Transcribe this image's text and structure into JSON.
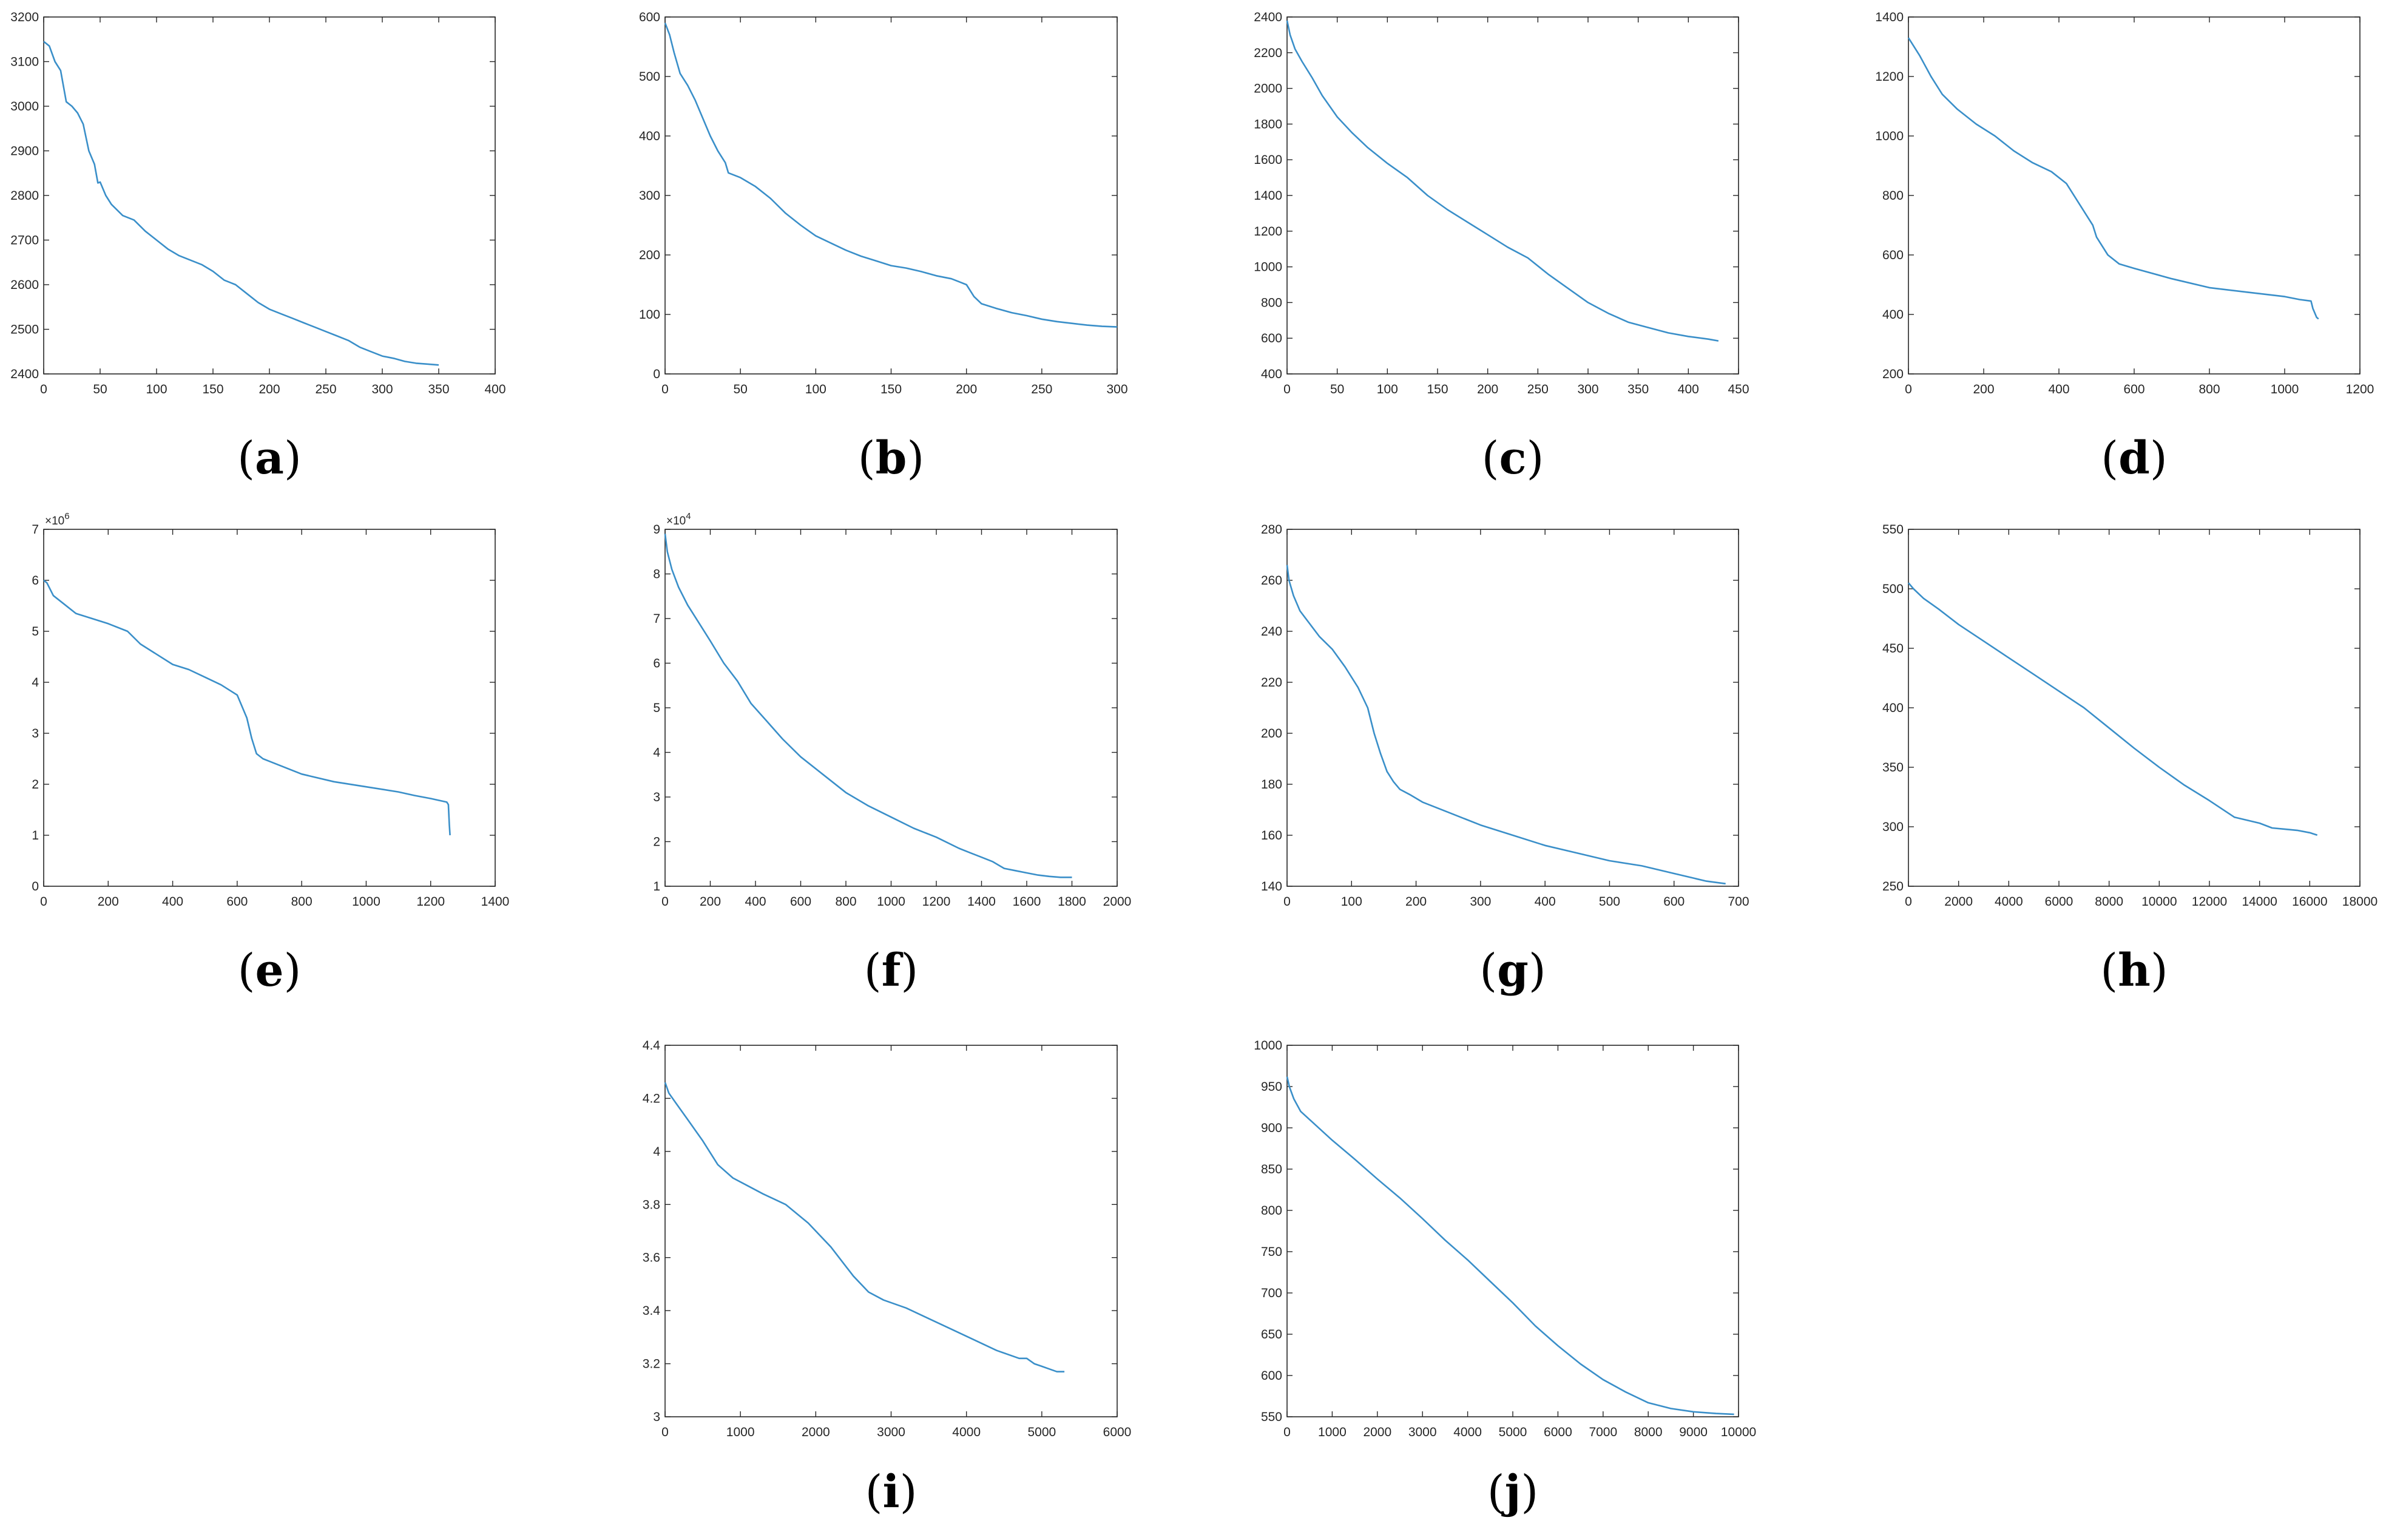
{
  "line_color": "#3a8fc9",
  "chart_data": [
    {
      "type": "line",
      "caption": "(a)",
      "xlim": [
        0,
        400
      ],
      "ylim": [
        2400,
        3200
      ],
      "xticks": [
        0,
        50,
        100,
        150,
        200,
        250,
        300,
        350,
        400
      ],
      "yticks": [
        2400,
        2500,
        2600,
        2700,
        2800,
        2900,
        3000,
        3100,
        3200
      ],
      "series": [
        {
          "x": [
            0,
            5,
            10,
            15,
            20,
            25,
            30,
            35,
            40,
            45,
            48,
            50,
            55,
            60,
            70,
            80,
            90,
            100,
            110,
            120,
            130,
            140,
            150,
            160,
            170,
            180,
            190,
            200,
            210,
            220,
            230,
            240,
            250,
            260,
            270,
            280,
            290,
            300,
            310,
            320,
            330,
            340,
            350
          ],
          "y": [
            3145,
            3135,
            3100,
            3080,
            3010,
            3000,
            2985,
            2960,
            2900,
            2870,
            2828,
            2830,
            2800,
            2780,
            2755,
            2745,
            2720,
            2700,
            2680,
            2665,
            2655,
            2645,
            2630,
            2610,
            2600,
            2580,
            2560,
            2545,
            2535,
            2525,
            2515,
            2505,
            2495,
            2485,
            2475,
            2460,
            2450,
            2440,
            2435,
            2428,
            2424,
            2422,
            2420
          ]
        }
      ]
    },
    {
      "type": "line",
      "caption": "(b)",
      "xlim": [
        0,
        300
      ],
      "ylim": [
        0,
        600
      ],
      "xticks": [
        0,
        50,
        100,
        150,
        200,
        250,
        300
      ],
      "yticks": [
        0,
        100,
        200,
        300,
        400,
        500,
        600
      ],
      "series": [
        {
          "x": [
            0,
            3,
            6,
            10,
            15,
            20,
            25,
            30,
            35,
            40,
            42,
            50,
            60,
            70,
            80,
            90,
            100,
            110,
            120,
            130,
            140,
            150,
            160,
            170,
            180,
            190,
            195,
            200,
            205,
            210,
            220,
            230,
            240,
            250,
            260,
            270,
            280,
            290,
            300
          ],
          "y": [
            590,
            570,
            540,
            505,
            485,
            460,
            430,
            400,
            375,
            355,
            338,
            330,
            315,
            295,
            270,
            250,
            232,
            220,
            208,
            198,
            190,
            182,
            178,
            172,
            165,
            160,
            155,
            150,
            130,
            118,
            110,
            103,
            98,
            92,
            88,
            85,
            82,
            80,
            79
          ]
        }
      ]
    },
    {
      "type": "line",
      "caption": "(c)",
      "xlim": [
        0,
        450
      ],
      "ylim": [
        400,
        2400
      ],
      "xticks": [
        0,
        50,
        100,
        150,
        200,
        250,
        300,
        350,
        400,
        450
      ],
      "yticks": [
        400,
        600,
        800,
        1000,
        1200,
        1400,
        1600,
        1800,
        2000,
        2200,
        2400
      ],
      "series": [
        {
          "x": [
            0,
            3,
            8,
            15,
            25,
            35,
            50,
            65,
            80,
            100,
            120,
            140,
            160,
            180,
            200,
            220,
            240,
            260,
            280,
            300,
            320,
            340,
            360,
            380,
            400,
            420,
            430
          ],
          "y": [
            2380,
            2300,
            2220,
            2150,
            2060,
            1960,
            1840,
            1750,
            1670,
            1580,
            1500,
            1400,
            1320,
            1250,
            1180,
            1110,
            1050,
            960,
            880,
            800,
            740,
            690,
            660,
            630,
            610,
            595,
            585
          ]
        }
      ]
    },
    {
      "type": "line",
      "caption": "(d)",
      "xlim": [
        0,
        1200
      ],
      "ylim": [
        200,
        1400
      ],
      "xticks": [
        0,
        200,
        400,
        600,
        800,
        1000,
        1200
      ],
      "yticks": [
        200,
        400,
        600,
        800,
        1000,
        1200,
        1400
      ],
      "series": [
        {
          "x": [
            0,
            10,
            30,
            60,
            90,
            130,
            180,
            230,
            280,
            330,
            380,
            420,
            450,
            470,
            490,
            500,
            510,
            530,
            560,
            600,
            700,
            800,
            900,
            1000,
            1040,
            1070,
            1075,
            1085,
            1090
          ],
          "y": [
            1330,
            1310,
            1270,
            1200,
            1140,
            1090,
            1040,
            1000,
            950,
            910,
            880,
            840,
            780,
            740,
            700,
            660,
            640,
            600,
            570,
            555,
            520,
            490,
            475,
            460,
            450,
            445,
            420,
            390,
            385
          ]
        }
      ]
    },
    {
      "type": "line",
      "caption": "(e)",
      "xlim": [
        0,
        1400
      ],
      "ylim": [
        0,
        7
      ],
      "xticks": [
        0,
        200,
        400,
        600,
        800,
        1000,
        1200,
        1400
      ],
      "yticks": [
        0,
        1,
        2,
        3,
        4,
        5,
        6,
        7
      ],
      "y_multiplier": "×10",
      "y_exponent": "6",
      "series": [
        {
          "x": [
            0,
            10,
            30,
            60,
            100,
            150,
            200,
            260,
            300,
            350,
            400,
            450,
            500,
            550,
            600,
            630,
            645,
            660,
            680,
            700,
            800,
            900,
            1000,
            1100,
            1150,
            1200,
            1250,
            1255,
            1258,
            1260
          ],
          "y": [
            6.0,
            5.95,
            5.7,
            5.55,
            5.35,
            5.25,
            5.15,
            5.0,
            4.75,
            4.55,
            4.35,
            4.25,
            4.1,
            3.95,
            3.75,
            3.3,
            2.9,
            2.6,
            2.5,
            2.45,
            2.2,
            2.05,
            1.95,
            1.85,
            1.78,
            1.72,
            1.65,
            1.6,
            1.2,
            1.0
          ]
        }
      ]
    },
    {
      "type": "line",
      "caption": "(f)",
      "xlim": [
        0,
        2000
      ],
      "ylim": [
        1,
        9
      ],
      "xticks": [
        0,
        200,
        400,
        600,
        800,
        1000,
        1200,
        1400,
        1600,
        1800,
        2000
      ],
      "yticks": [
        1,
        2,
        3,
        4,
        5,
        6,
        7,
        8,
        9
      ],
      "y_multiplier": "×10",
      "y_exponent": "4",
      "series": [
        {
          "x": [
            0,
            10,
            30,
            60,
            100,
            150,
            200,
            260,
            320,
            380,
            450,
            520,
            600,
            700,
            800,
            900,
            1000,
            1100,
            1200,
            1300,
            1350,
            1400,
            1450,
            1500,
            1550,
            1600,
            1650,
            1700,
            1750,
            1800
          ],
          "y": [
            8.9,
            8.5,
            8.1,
            7.7,
            7.3,
            6.9,
            6.5,
            6.0,
            5.6,
            5.1,
            4.7,
            4.3,
            3.9,
            3.5,
            3.1,
            2.8,
            2.55,
            2.3,
            2.1,
            1.85,
            1.75,
            1.65,
            1.55,
            1.4,
            1.35,
            1.3,
            1.25,
            1.22,
            1.2,
            1.2
          ]
        }
      ]
    },
    {
      "type": "line",
      "caption": "(g)",
      "xlim": [
        0,
        700
      ],
      "ylim": [
        140,
        280
      ],
      "xticks": [
        0,
        100,
        200,
        300,
        400,
        500,
        600,
        700
      ],
      "yticks": [
        140,
        160,
        180,
        200,
        220,
        240,
        260,
        280
      ],
      "series": [
        {
          "x": [
            0,
            3,
            10,
            20,
            35,
            50,
            70,
            90,
            110,
            125,
            135,
            145,
            155,
            165,
            175,
            190,
            210,
            250,
            300,
            350,
            400,
            450,
            500,
            550,
            600,
            650,
            680
          ],
          "y": [
            266,
            260,
            254,
            248,
            243,
            238,
            233,
            226,
            218,
            210,
            200,
            192,
            185,
            181,
            178,
            176,
            173,
            169,
            164,
            160,
            156,
            153,
            150,
            148,
            145,
            142,
            141
          ]
        }
      ]
    },
    {
      "type": "line",
      "caption": "(h)",
      "xlim": [
        0,
        18000
      ],
      "ylim": [
        250,
        550
      ],
      "xticks": [
        0,
        2000,
        4000,
        6000,
        8000,
        10000,
        12000,
        14000,
        16000,
        18000
      ],
      "yticks": [
        250,
        300,
        350,
        400,
        450,
        500,
        550
      ],
      "series": [
        {
          "x": [
            0,
            200,
            600,
            1200,
            2000,
            3000,
            4000,
            5000,
            6000,
            7000,
            8000,
            9000,
            10000,
            11000,
            12000,
            13000,
            14000,
            14500,
            15000,
            15500,
            16000,
            16300
          ],
          "y": [
            505,
            500,
            492,
            483,
            470,
            456,
            442,
            428,
            414,
            400,
            383,
            366,
            350,
            335,
            322,
            308,
            303,
            299,
            298,
            297,
            295,
            293
          ]
        }
      ]
    },
    {
      "type": "line",
      "caption": "(i)",
      "xlim": [
        0,
        6000
      ],
      "ylim": [
        3,
        4.4
      ],
      "xticks": [
        0,
        1000,
        2000,
        3000,
        4000,
        5000,
        6000
      ],
      "yticks": [
        3,
        3.2,
        3.4,
        3.6,
        3.8,
        4,
        4.2,
        4.4
      ],
      "series": [
        {
          "x": [
            0,
            50,
            150,
            300,
            500,
            700,
            900,
            1100,
            1300,
            1600,
            1900,
            2200,
            2500,
            2700,
            2900,
            3200,
            3500,
            3800,
            4100,
            4400,
            4700,
            4800,
            4900,
            5000,
            5100,
            5200,
            5300
          ],
          "y": [
            4.26,
            4.22,
            4.18,
            4.12,
            4.04,
            3.95,
            3.9,
            3.87,
            3.84,
            3.8,
            3.73,
            3.64,
            3.53,
            3.47,
            3.44,
            3.41,
            3.37,
            3.33,
            3.29,
            3.25,
            3.22,
            3.22,
            3.2,
            3.19,
            3.18,
            3.17,
            3.17
          ]
        }
      ]
    },
    {
      "type": "line",
      "caption": "(j)",
      "xlim": [
        0,
        10000
      ],
      "ylim": [
        550,
        1000
      ],
      "xticks": [
        0,
        1000,
        2000,
        3000,
        4000,
        5000,
        6000,
        7000,
        8000,
        9000,
        10000
      ],
      "yticks": [
        550,
        600,
        650,
        700,
        750,
        800,
        850,
        900,
        950,
        1000
      ],
      "series": [
        {
          "x": [
            0,
            50,
            150,
            300,
            600,
            1000,
            1500,
            2000,
            2500,
            3000,
            3500,
            4000,
            4500,
            5000,
            5500,
            6000,
            6500,
            7000,
            7500,
            8000,
            8500,
            9000,
            9500,
            9900
          ],
          "y": [
            962,
            950,
            935,
            920,
            905,
            885,
            862,
            838,
            815,
            790,
            764,
            740,
            714,
            688,
            660,
            636,
            614,
            595,
            580,
            567,
            560,
            556,
            554,
            553
          ]
        }
      ]
    }
  ]
}
